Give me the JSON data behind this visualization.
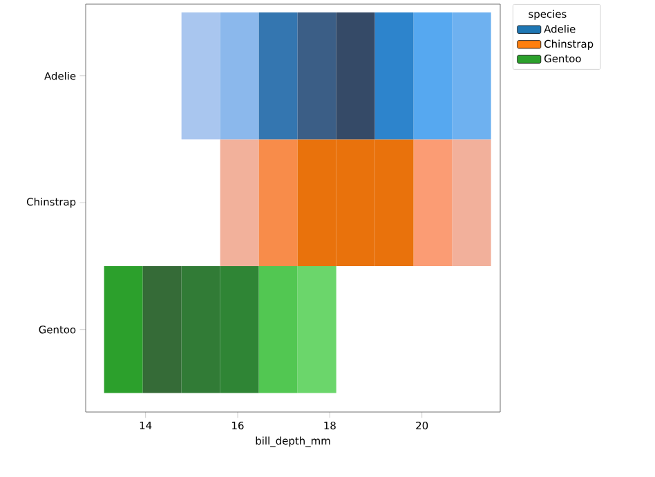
{
  "chart_data": {
    "type": "bar",
    "orientation": "horizontal",
    "categories": [
      "Adelie",
      "Chinstrap",
      "Gentoo"
    ],
    "xlabel": "bill_depth_mm",
    "legend_title": "species",
    "legend": "right",
    "xlim": [
      12.7,
      21.7
    ],
    "xticks": [
      14,
      16,
      18,
      20
    ],
    "series": [
      {
        "base": [
          14.78,
          15.62,
          13.1
        ],
        "values": [
          0.84,
          0.84,
          0.84
        ],
        "colors": [
          "#a9c6ef",
          "#f2b19b",
          "#2ca02c"
        ]
      },
      {
        "base": [
          15.62,
          16.46,
          13.94
        ],
        "values": [
          0.84,
          0.84,
          0.84
        ],
        "colors": [
          "#8bb8ec",
          "#f88c4a",
          "#356b37"
        ]
      },
      {
        "base": [
          16.46,
          17.3,
          14.78
        ],
        "values": [
          0.84,
          0.84,
          0.84
        ],
        "colors": [
          "#3476b0",
          "#e9720c",
          "#317b36"
        ]
      },
      {
        "base": [
          17.3,
          18.14,
          15.62
        ],
        "values": [
          0.84,
          0.84,
          0.84
        ],
        "colors": [
          "#3b5e86",
          "#e9720c",
          "#2f8535"
        ]
      },
      {
        "base": [
          18.14,
          18.98,
          16.46
        ],
        "values": [
          0.84,
          0.84,
          0.84
        ],
        "colors": [
          "#354a67",
          "#e9720c",
          "#52c752"
        ]
      },
      {
        "base": [
          18.98,
          19.82,
          17.3
        ],
        "values": [
          0.84,
          0.84,
          0.84
        ],
        "colors": [
          "#2d84cc",
          "#fb9c74",
          "#6bd66b"
        ]
      },
      {
        "base": [
          19.82,
          20.66,
          null
        ],
        "values": [
          0.84,
          0.84,
          null
        ],
        "colors": [
          "#56a8f0",
          "#f2b09b",
          null
        ]
      },
      {
        "base": [
          20.66,
          null,
          null
        ],
        "values": [
          0.84,
          null,
          null
        ],
        "colors": [
          "#6eb1f0",
          null,
          null
        ]
      },
      {
        "name": "Adelie",
        "color": "#1f77b4",
        "values": [
          null,
          null,
          null
        ]
      },
      {
        "name": "Chinstrap",
        "color": "#ff7f0e",
        "values": [
          null,
          null,
          null
        ]
      },
      {
        "name": "Gentoo",
        "color": "#2ca02c",
        "values": [
          null,
          null,
          null
        ]
      }
    ]
  }
}
